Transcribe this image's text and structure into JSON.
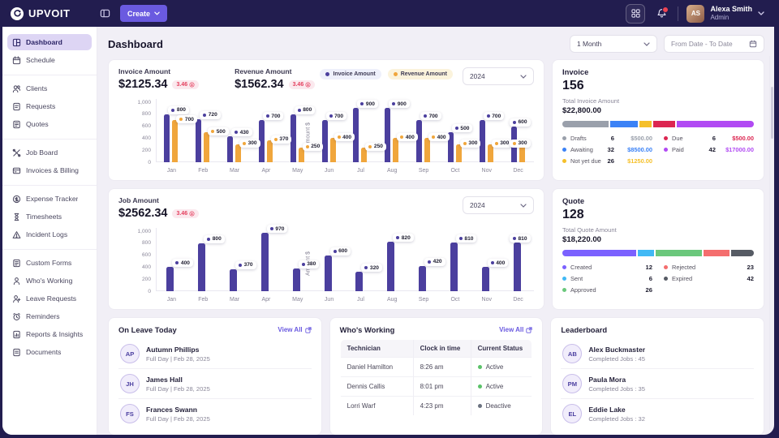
{
  "nav": {
    "brand": "UPVOIT",
    "create_label": "Create",
    "user": {
      "name": "Alexa Smith",
      "role": "Admin",
      "initials": "AS"
    }
  },
  "sidebar": {
    "groups": [
      {
        "items": [
          {
            "label": "Dashboard",
            "icon": "dashboard-icon",
            "active": true
          },
          {
            "label": "Schedule",
            "icon": "schedule-icon"
          }
        ]
      },
      {
        "items": [
          {
            "label": "Clients",
            "icon": "clients-icon"
          },
          {
            "label": "Requests",
            "icon": "requests-icon"
          },
          {
            "label": "Quotes",
            "icon": "quotes-icon"
          }
        ]
      },
      {
        "items": [
          {
            "label": "Job Board",
            "icon": "job-board-icon"
          },
          {
            "label": "Invoices & Billing",
            "icon": "invoices-icon"
          }
        ]
      },
      {
        "items": [
          {
            "label": "Expense Tracker",
            "icon": "expense-icon"
          },
          {
            "label": "Timesheets",
            "icon": "timesheets-icon"
          },
          {
            "label": "Incident Logs",
            "icon": "incident-icon"
          }
        ]
      },
      {
        "items": [
          {
            "label": "Custom Forms",
            "icon": "forms-icon"
          },
          {
            "label": "Who's Working",
            "icon": "working-icon"
          },
          {
            "label": "Leave Requests",
            "icon": "leave-icon"
          },
          {
            "label": "Reminders",
            "icon": "reminders-icon"
          },
          {
            "label": "Reports & Insights",
            "icon": "reports-icon"
          },
          {
            "label": "Documents",
            "icon": "documents-icon"
          }
        ]
      }
    ]
  },
  "header": {
    "title": "Dashboard",
    "period_value": "1 Month",
    "date_range_placeholder": "From Date - To Date"
  },
  "chart_data": [
    {
      "type": "bar",
      "categories": [
        "Jan",
        "Feb",
        "Mar",
        "Apr",
        "May",
        "Jun",
        "Jul",
        "Aug",
        "Sep",
        "Oct",
        "Nov",
        "Dec"
      ],
      "series": [
        {
          "name": "Invoice Amount",
          "color": "#4b3f9e",
          "values": [
            800,
            720,
            430,
            700,
            800,
            700,
            900,
            900,
            700,
            500,
            700,
            600
          ]
        },
        {
          "name": "Revenue Amount",
          "color": "#f0a63c",
          "values": [
            700,
            500,
            300,
            370,
            250,
            400,
            250,
            400,
            400,
            300,
            300,
            300
          ]
        }
      ],
      "ylabel": "Amount $",
      "ylim": [
        0,
        1000
      ],
      "yticks": [
        0,
        200,
        400,
        600,
        800,
        1000
      ],
      "ytick_labels": [
        "0",
        "200",
        "400",
        "600",
        "800",
        "1,000"
      ],
      "stats": [
        {
          "label": "Invoice Amount",
          "value": "$2125.34",
          "delta": "3.46"
        },
        {
          "label": "Revenue Amount",
          "value": "$1562.34",
          "delta": "3.46"
        }
      ],
      "year_select": "2024",
      "legend_position": "top"
    },
    {
      "type": "bar",
      "categories": [
        "Jan",
        "Feb",
        "Mar",
        "Apr",
        "May",
        "Jun",
        "Jul",
        "Aug",
        "Sep",
        "Oct",
        "Nov",
        "Dec"
      ],
      "series": [
        {
          "name": "Job Amount",
          "color": "#4b3f9e",
          "values": [
            400,
            800,
            370,
            970,
            380,
            600,
            320,
            820,
            420,
            810,
            400,
            810
          ]
        }
      ],
      "ylabel": "Amount $",
      "ylim": [
        0,
        1000
      ],
      "yticks": [
        0,
        200,
        400,
        600,
        800,
        1000
      ],
      "ytick_labels": [
        "0",
        "200",
        "400",
        "600",
        "800",
        "1,000"
      ],
      "stats": [
        {
          "label": "Job Amount",
          "value": "$2562.34",
          "delta": "3.46"
        }
      ],
      "year_select": "2024",
      "legend_position": "none"
    }
  ],
  "invoice_card": {
    "title": "Invoice",
    "count": "156",
    "total_label": "Total Invoice Amount",
    "total": "$22,800.00",
    "segments": [
      {
        "name": "Drafts",
        "color": "#9aa0ab",
        "pct": 25
      },
      {
        "name": "Awaiting",
        "color": "#3b82f6",
        "pct": 15
      },
      {
        "name": "Not yet due",
        "color": "#f5c02a",
        "pct": 6.5
      },
      {
        "name": "Due",
        "color": "#dc2651",
        "pct": 12
      },
      {
        "name": "Paid",
        "color": "#b14af3",
        "pct": 41.5
      }
    ],
    "legend_left": [
      {
        "label": "Drafts",
        "color": "#9aa0ab",
        "count": "6",
        "amount": "$500.00"
      },
      {
        "label": "Awaiting",
        "color": "#3b82f6",
        "count": "32",
        "amount": "$8500.00"
      },
      {
        "label": "Not yet due",
        "color": "#f5c02a",
        "count": "26",
        "amount": "$1250.00"
      }
    ],
    "legend_right": [
      {
        "label": "Due",
        "color": "#dc2651",
        "count": "6",
        "amount": "$500.00"
      },
      {
        "label": "Paid",
        "color": "#b14af3",
        "count": "42",
        "amount": "$17000.00"
      }
    ]
  },
  "quote_card": {
    "title": "Quote",
    "count": "128",
    "total_label": "Total Quote Amount",
    "total": "$18,220.00",
    "segments": [
      {
        "name": "Created",
        "color": "#7b61ff",
        "pct": 39
      },
      {
        "name": "Sent",
        "color": "#41b9f5",
        "pct": 8.5
      },
      {
        "name": "Approved",
        "color": "#6bc87c",
        "pct": 24.5
      },
      {
        "name": "Rejected",
        "color": "#f46e6e",
        "pct": 14
      },
      {
        "name": "Expired",
        "color": "#565b64",
        "pct": 12
      }
    ],
    "legend_left": [
      {
        "label": "Created",
        "color": "#7b61ff",
        "count": "12"
      },
      {
        "label": "Sent",
        "color": "#41b9f5",
        "count": "6"
      },
      {
        "label": "Approved",
        "color": "#6bc87c",
        "count": "26"
      }
    ],
    "legend_right": [
      {
        "label": "Rejected",
        "color": "#f46e6e",
        "count": "23"
      },
      {
        "label": "Expired",
        "color": "#565b64",
        "count": "42"
      }
    ]
  },
  "on_leave": {
    "title": "On Leave Today",
    "view_all": "View All",
    "rows": [
      {
        "initials": "AP",
        "name": "Autumn Phillips",
        "detail": "Full Day  |  Feb 28, 2025"
      },
      {
        "initials": "JH",
        "name": "James Hall",
        "detail": "Full Day  |  Feb 28, 2025"
      },
      {
        "initials": "FS",
        "name": "Frances Swann",
        "detail": "Full Day  |  Feb 28, 2025"
      }
    ]
  },
  "whos_working": {
    "title": "Who's Working",
    "view_all": "View All",
    "columns": [
      "Technician",
      "Clock in time",
      "Current Status"
    ],
    "rows": [
      {
        "name": "Daniel Hamilton",
        "time": "8:26 am",
        "status": "Active",
        "status_color": "#5bc269"
      },
      {
        "name": "Dennis Callis",
        "time": "8:01 pm",
        "status": "Active",
        "status_color": "#5bc269"
      },
      {
        "name": "Lorri Warf",
        "time": "4:23 pm",
        "status": "Deactive",
        "status_color": "#6b7280"
      }
    ]
  },
  "leaderboard": {
    "title": "Leaderboard",
    "rows": [
      {
        "initials": "AB",
        "name": "Alex Buckmaster",
        "detail": "Completed Jobs : 45"
      },
      {
        "initials": "PM",
        "name": "Paula Mora",
        "detail": "Completed Jobs : 35"
      },
      {
        "initials": "EL",
        "name": "Eddie Lake",
        "detail": "Completed Jobs : 32"
      }
    ]
  },
  "colors": {
    "navbar_bg": "#221d4f",
    "accent": "#6a5ae0",
    "bar_primary": "#4b3f9e",
    "bar_secondary": "#f0a63c",
    "delta_negative": "#e4405f",
    "active_status": "#5bc269"
  }
}
